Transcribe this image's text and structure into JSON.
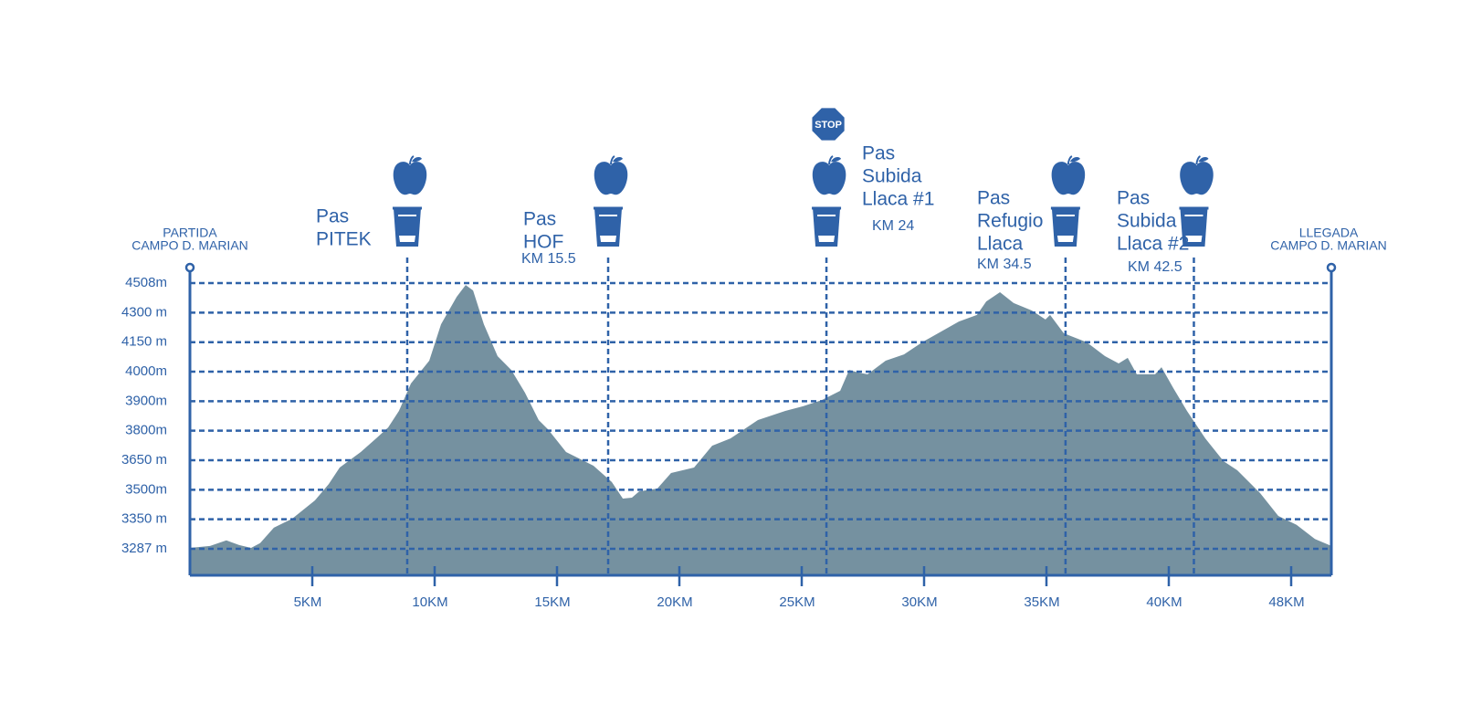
{
  "chart_data": {
    "type": "area",
    "start_label": [
      "PARTIDA",
      "CAMPO D. MARIAN"
    ],
    "end_label": [
      "LLEGADA",
      "CAMPO D. MARIAN"
    ],
    "color": "#7591a0",
    "line_color": "#2f62a8",
    "grid": true,
    "x": [
      0,
      0.82,
      1.49,
      2.01,
      2.5,
      2.87,
      3.43,
      4.18,
      5.11,
      5.67,
      6.12,
      6.98,
      7.61,
      8.1,
      8.54,
      9.03,
      9.78,
      10.26,
      10.9,
      11.27,
      11.57,
      12.01,
      12.57,
      13.13,
      13.69,
      14.25,
      14.63,
      15.37,
      16.49,
      17.24,
      17.69,
      18.06,
      18.36,
      19.1,
      19.66,
      20.6,
      21.34,
      22.09,
      23.21,
      24.33,
      25.07,
      25.82,
      26.57,
      26.94,
      27.31,
      27.69,
      28.43,
      29.18,
      29.93,
      31.42,
      32.16,
      32.54,
      33.1,
      33.66,
      34.4,
      34.96,
      35.15,
      35.71,
      36.64,
      37.39,
      37.95,
      38.32,
      38.69,
      39.44,
      39.7,
      40.3,
      41.19,
      42.39,
      43.58,
      44.48,
      45.97,
      47.16,
      48.27,
      49.18,
      50
    ],
    "values": [
      3289,
      3293,
      3305,
      3295,
      3289,
      3299,
      3332,
      3353,
      3446,
      3529,
      3613,
      3692,
      3761,
      3811,
      3867,
      3960,
      4056,
      4241,
      4411,
      4495,
      4456,
      4241,
      4079,
      4009,
      3929,
      3836,
      3805,
      3692,
      3622,
      3539,
      3455,
      3460,
      3492,
      3506,
      3585,
      3613,
      3724,
      3761,
      3836,
      3867,
      3883,
      3904,
      3935,
      4009,
      3997,
      3991,
      4056,
      4088,
      4150,
      4255,
      4288,
      4379,
      4444,
      4367,
      4315,
      4265,
      4288,
      4195,
      4150,
      4079,
      4042,
      4070,
      3991,
      3991,
      4023,
      3944,
      3867,
      3761,
      3645,
      3599,
      3483,
      3367,
      3338,
      3308,
      3293
    ],
    "xlim": [
      0,
      50
    ],
    "ylim": [
      3230,
      4610
    ],
    "xticks": [
      {
        "value": 5,
        "label": "5KM"
      },
      {
        "value": 10,
        "label": "10KM"
      },
      {
        "value": 15,
        "label": "15KM"
      },
      {
        "value": 20,
        "label": "20KM"
      },
      {
        "value": 25,
        "label": "25KM"
      },
      {
        "value": 30,
        "label": "30KM"
      },
      {
        "value": 35,
        "label": "35KM"
      },
      {
        "value": 40,
        "label": "40KM"
      },
      {
        "value": 48,
        "label": "48KM"
      }
    ],
    "yticks": [
      {
        "value": 3287,
        "label": "3287 m"
      },
      {
        "value": 3350,
        "label": "3350 m"
      },
      {
        "value": 3500,
        "label": "3500m"
      },
      {
        "value": 3650,
        "label": "3650 m"
      },
      {
        "value": 3800,
        "label": "3800m"
      },
      {
        "value": 3900,
        "label": "3900m"
      },
      {
        "value": 4000,
        "label": "4000m"
      },
      {
        "value": 4150,
        "label": "4150 m"
      },
      {
        "value": 4300,
        "label": "4300 m"
      },
      {
        "value": 4508,
        "label": "4508m"
      }
    ],
    "stations": [
      {
        "x": 8.88,
        "name": [
          "Pas",
          "PITEK"
        ]
      },
      {
        "x": 17.09,
        "name": [
          "Pas",
          "HOF"
        ],
        "km": "KM 15.5"
      },
      {
        "x": 26.01,
        "name": [
          "Pas",
          "Subida",
          "Llaca #1"
        ],
        "km": "KM 24",
        "sign": "STOP"
      },
      {
        "x": 35.78,
        "name": [
          "Pas",
          "Refugio",
          "Llaca"
        ],
        "km": "KM 34.5"
      },
      {
        "x": 41.64,
        "name": [
          "Pas",
          "Subida",
          "Llaca #2"
        ],
        "km": "KM 42.5"
      }
    ]
  }
}
